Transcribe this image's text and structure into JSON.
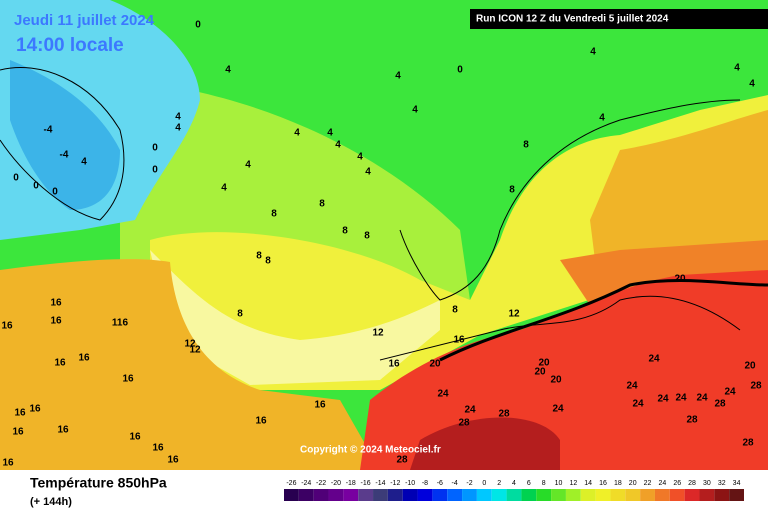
{
  "header": {
    "date": "Jeudi 11 juillet 2024",
    "time": "14:00 locale",
    "run": "Run ICON 12 Z du Vendredi 5 juillet 2024",
    "copyright": "Copyright © 2024 Meteociel.fr"
  },
  "footer": {
    "title": "Température 850hPa",
    "lead": "(+ 144h)"
  },
  "legend": {
    "labels": [
      "-26",
      "-24",
      "-22",
      "-20",
      "-18",
      "-16",
      "-14",
      "-12",
      "-10",
      "-8",
      "-6",
      "-4",
      "-2",
      "0",
      "2",
      "4",
      "6",
      "8",
      "10",
      "12",
      "14",
      "16",
      "18",
      "20",
      "22",
      "24",
      "26",
      "28",
      "30",
      "32",
      "34"
    ],
    "colors": [
      "#280050",
      "#3c0064",
      "#500078",
      "#64008c",
      "#7800a0",
      "#5a3c8c",
      "#3c3c78",
      "#1e1e8c",
      "#0000b4",
      "#0000dc",
      "#0032f0",
      "#0064ff",
      "#0096ff",
      "#00c8ff",
      "#00e6e6",
      "#00dca0",
      "#00d250",
      "#28dc28",
      "#64e628",
      "#a0f028",
      "#dcf028",
      "#f0f028",
      "#f0dc28",
      "#f0c828",
      "#f0a028",
      "#f07828",
      "#f05028",
      "#dc2828",
      "#b41e1e",
      "#8c1414",
      "#641414"
    ]
  },
  "contour_labels": [
    "0",
    "0",
    "0",
    "0",
    "0",
    "0",
    "0",
    "-4",
    "-4",
    "4",
    "4",
    "4",
    "4",
    "4",
    "4",
    "4",
    "4",
    "4",
    "4",
    "4",
    "4",
    "4",
    "4",
    "4",
    "4",
    "4",
    "8",
    "8",
    "8",
    "8",
    "8",
    "8",
    "8",
    "8",
    "8",
    "8",
    "12",
    "12",
    "12",
    "12",
    "16",
    "16",
    "16",
    "116",
    "16",
    "16",
    "16",
    "16",
    "16",
    "16",
    "16",
    "16",
    "16",
    "16",
    "16",
    "16",
    "16",
    "16",
    "16",
    "20",
    "20",
    "20",
    "20",
    "20",
    "20",
    "24",
    "24",
    "24",
    "24",
    "24",
    "24",
    "24",
    "24",
    "24",
    "24",
    "28",
    "28",
    "28",
    "28",
    "28",
    "28",
    "28"
  ]
}
